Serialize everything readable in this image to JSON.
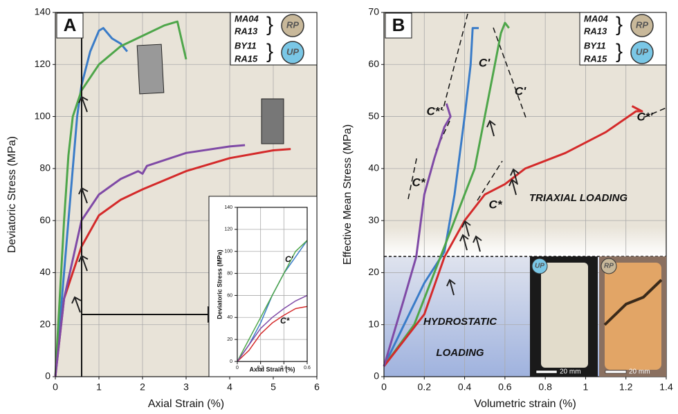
{
  "chart_data": [
    {
      "type": "line",
      "panel_label": "A",
      "x_label": "Axial Strain (%)",
      "y_label": "Deviatoric Stress (MPa)",
      "xlim": [
        0,
        6
      ],
      "ylim": [
        0,
        140
      ],
      "xticks": [
        0,
        1,
        2,
        3,
        4,
        5,
        6
      ],
      "yticks": [
        0,
        20,
        40,
        60,
        80,
        100,
        120,
        140
      ],
      "grid": true,
      "legend_icons": [
        "RP",
        "UP"
      ],
      "series": [
        {
          "name": "MA04",
          "color": "#3a7cc8",
          "x": [
            0,
            0.1,
            0.2,
            0.3,
            0.4,
            0.5,
            0.6,
            0.8,
            1.0,
            1.1,
            1.3,
            1.5,
            1.65
          ],
          "values": [
            0,
            20,
            40,
            60,
            80,
            100,
            112,
            125,
            133,
            134,
            130,
            128,
            125
          ]
        },
        {
          "name": "RA13",
          "color": "#4ea64a",
          "x": [
            0,
            0.1,
            0.2,
            0.3,
            0.4,
            0.6,
            1,
            1.5,
            2,
            2.5,
            2.8,
            3
          ],
          "values": [
            0,
            30,
            60,
            85,
            100,
            110,
            120,
            127,
            131,
            135,
            136.5,
            122
          ]
        },
        {
          "name": "BY11",
          "color": "#d42a2a",
          "x": [
            0,
            0.2,
            0.4,
            0.6,
            1,
            1.5,
            2,
            3,
            4,
            5,
            5.4
          ],
          "values": [
            0,
            30,
            40,
            50,
            62,
            68,
            72,
            79,
            84,
            87,
            87.5
          ]
        },
        {
          "name": "RA15",
          "color": "#7f4aa6",
          "x": [
            0,
            0.2,
            0.4,
            0.6,
            0.8,
            1,
            1.5,
            1.9,
            2,
            2.1,
            3,
            4,
            4.35
          ],
          "values": [
            0,
            30,
            45,
            60,
            65,
            70,
            76,
            79,
            78,
            81,
            86,
            88.5,
            89
          ]
        }
      ]
    },
    {
      "type": "line",
      "x_label": "Axial Strain (%)",
      "y_label": "Deviatoric Stress (MPa)",
      "xlim": [
        0,
        0.6
      ],
      "ylim": [
        0,
        140
      ],
      "xticks": [
        0,
        0.2,
        0.4,
        0.6
      ],
      "yticks": [
        0,
        20,
        40,
        60,
        80,
        100,
        120,
        140
      ],
      "grid": true,
      "annotations": [
        "C'",
        "C*"
      ],
      "series": [
        {
          "color": "#3a7cc8",
          "x": [
            0,
            0.1,
            0.2,
            0.3,
            0.4,
            0.5,
            0.6
          ],
          "values": [
            0,
            15,
            35,
            60,
            80,
            95,
            110
          ]
        },
        {
          "color": "#4ea64a",
          "x": [
            0,
            0.1,
            0.2,
            0.3,
            0.4,
            0.5,
            0.6
          ],
          "values": [
            0,
            20,
            40,
            60,
            80,
            100,
            110
          ]
        },
        {
          "color": "#d42a2a",
          "x": [
            0,
            0.1,
            0.2,
            0.3,
            0.4,
            0.5,
            0.6
          ],
          "values": [
            0,
            10,
            25,
            35,
            42,
            48,
            50
          ]
        },
        {
          "color": "#7f4aa6",
          "x": [
            0,
            0.1,
            0.2,
            0.3,
            0.4,
            0.5,
            0.6
          ],
          "values": [
            0,
            15,
            30,
            40,
            48,
            55,
            60
          ]
        }
      ]
    },
    {
      "type": "line",
      "panel_label": "B",
      "x_label": "Volumetric strain (%)",
      "y_label": "Effective Mean Stress (MPa)",
      "xlim": [
        0,
        1.4
      ],
      "ylim": [
        0,
        70
      ],
      "xticks": [
        0,
        0.2,
        0.4,
        0.6,
        0.8,
        1,
        1.2,
        1.4
      ],
      "yticks": [
        0,
        10,
        20,
        30,
        40,
        50,
        60,
        70
      ],
      "grid": true,
      "legend_icons": [
        "RP",
        "UP"
      ],
      "annotations": [
        "C'",
        "C'",
        "C*'",
        "C*'",
        "C*",
        "C*",
        "TRIAXIAL LOADING",
        "HYDROSTATIC",
        "LOADING",
        "20 mm",
        "20 mm"
      ],
      "photo_labels": [
        "UP",
        "RP"
      ],
      "series": [
        {
          "name": "MA04",
          "color": "#3a7cc8",
          "x": [
            0,
            0.1,
            0.2,
            0.3,
            0.35,
            0.4,
            0.43,
            0.44,
            0.47
          ],
          "values": [
            2,
            10,
            18,
            24,
            35,
            50,
            60,
            67,
            67
          ]
        },
        {
          "name": "RA13",
          "color": "#4ea64a",
          "x": [
            0,
            0.15,
            0.28,
            0.35,
            0.45,
            0.5,
            0.55,
            0.58,
            0.6,
            0.62
          ],
          "values": [
            2,
            10,
            23,
            30,
            40,
            50,
            60,
            66,
            68,
            67
          ]
        },
        {
          "name": "BY11",
          "color": "#d42a2a",
          "x": [
            0,
            0.2,
            0.3,
            0.4,
            0.5,
            0.6,
            0.7,
            0.9,
            1.1,
            1.25,
            1.28,
            1.23
          ],
          "values": [
            2,
            12,
            23,
            30,
            35,
            37,
            40,
            43,
            47,
            51,
            51,
            52
          ]
        },
        {
          "name": "RA15",
          "color": "#7f4aa6",
          "x": [
            0,
            0.1,
            0.16,
            0.2,
            0.25,
            0.3,
            0.33,
            0.31
          ],
          "values": [
            2,
            15,
            23,
            35,
            42,
            48,
            50,
            52.5
          ]
        }
      ]
    }
  ]
}
